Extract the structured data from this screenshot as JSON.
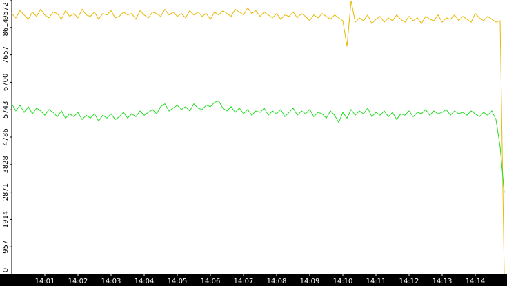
{
  "chart_data": {
    "type": "line",
    "categories": [
      null,
      null,
      null,
      null,
      null,
      null,
      null,
      null,
      "14:01",
      null,
      null,
      null,
      null,
      null,
      null,
      null,
      "14:02",
      null,
      null,
      null,
      null,
      null,
      null,
      null,
      "14:03",
      null,
      null,
      null,
      null,
      null,
      null,
      null,
      "14:04",
      null,
      null,
      null,
      null,
      null,
      null,
      null,
      "14:05",
      null,
      null,
      null,
      null,
      null,
      null,
      null,
      "14:06",
      null,
      null,
      null,
      null,
      null,
      null,
      null,
      "14:07",
      null,
      null,
      null,
      null,
      null,
      null,
      null,
      "14:08",
      null,
      null,
      null,
      null,
      null,
      null,
      null,
      "14:09",
      null,
      null,
      null,
      null,
      null,
      null,
      null,
      "14:10",
      null,
      null,
      null,
      null,
      null,
      null,
      null,
      "14:11",
      null,
      null,
      null,
      null,
      null,
      null,
      null,
      "14:12",
      null,
      null,
      null,
      null,
      null,
      null,
      null,
      "14:13",
      null,
      null,
      null,
      null,
      null,
      null,
      null,
      "14:14",
      null,
      null,
      null,
      null,
      null,
      null,
      null
    ],
    "series": [
      {
        "color": "#e8b800",
        "values": [
          9100,
          8950,
          9200,
          9050,
          8900,
          9150,
          9000,
          9250,
          9050,
          8950,
          9150,
          9100,
          8900,
          9200,
          9000,
          9100,
          8950,
          9250,
          9050,
          9000,
          9150,
          8900,
          9100,
          9050,
          9200,
          8950,
          9000,
          9150,
          9050,
          9100,
          8900,
          9200,
          9050,
          8950,
          9150,
          9100,
          9000,
          9250,
          9050,
          9150,
          9000,
          9100,
          8950,
          9200,
          9050,
          9150,
          9000,
          9100,
          8900,
          9150,
          9050,
          9200,
          9100,
          9000,
          9250,
          9150,
          9050,
          9300,
          9100,
          9200,
          9000,
          9150,
          9050,
          8950,
          9100,
          8900,
          9050,
          9000,
          9150,
          8950,
          9100,
          9000,
          8850,
          9050,
          8950,
          9100,
          9000,
          8900,
          9050,
          8950,
          8850,
          7950,
          9550,
          8800,
          8950,
          8850,
          9050,
          8750,
          8900,
          9000,
          8800,
          8950,
          8850,
          9050,
          8900,
          8800,
          9000,
          8850,
          8950,
          8750,
          9000,
          8900,
          8850,
          9050,
          8800,
          8950,
          8900,
          9050,
          8850,
          9000,
          8900,
          8800,
          9100,
          8950,
          8850,
          9000,
          8900,
          8800,
          8850,
          0
        ]
      },
      {
        "color": "#22dd22",
        "values": [
          5950,
          5700,
          5900,
          5650,
          5850,
          5600,
          5800,
          5700,
          5550,
          5750,
          5650,
          5500,
          5700,
          5450,
          5600,
          5500,
          5650,
          5400,
          5550,
          5450,
          5600,
          5350,
          5550,
          5450,
          5600,
          5400,
          5500,
          5650,
          5450,
          5600,
          5500,
          5700,
          5550,
          5650,
          5750,
          5600,
          5850,
          5950,
          5700,
          5800,
          5900,
          5750,
          5850,
          5700,
          5950,
          5800,
          5750,
          5900,
          5850,
          6000,
          6050,
          5800,
          5700,
          5850,
          5650,
          5800,
          5600,
          5750,
          5550,
          5700,
          5650,
          5800,
          5550,
          5700,
          5600,
          5750,
          5500,
          5650,
          5800,
          5550,
          5700,
          5600,
          5750,
          5500,
          5650,
          5600,
          5450,
          5700,
          5550,
          5300,
          5650,
          5450,
          5750,
          5550,
          5700,
          5600,
          5800,
          5500,
          5650,
          5550,
          5700,
          5500,
          5650,
          5400,
          5600,
          5550,
          5700,
          5500,
          5650,
          5600,
          5750,
          5550,
          5700,
          5600,
          5650,
          5750,
          5550,
          5700,
          5600,
          5650,
          5550,
          5700,
          5600,
          5500,
          5650,
          5550,
          5700,
          5400,
          4450,
          2850
        ]
      }
    ],
    "ylim": [
      0,
      9572
    ],
    "yticks": [
      0,
      957,
      1914,
      2871,
      3828,
      4786,
      5743,
      6700,
      7657,
      8614,
      9572
    ],
    "grid": false
  }
}
